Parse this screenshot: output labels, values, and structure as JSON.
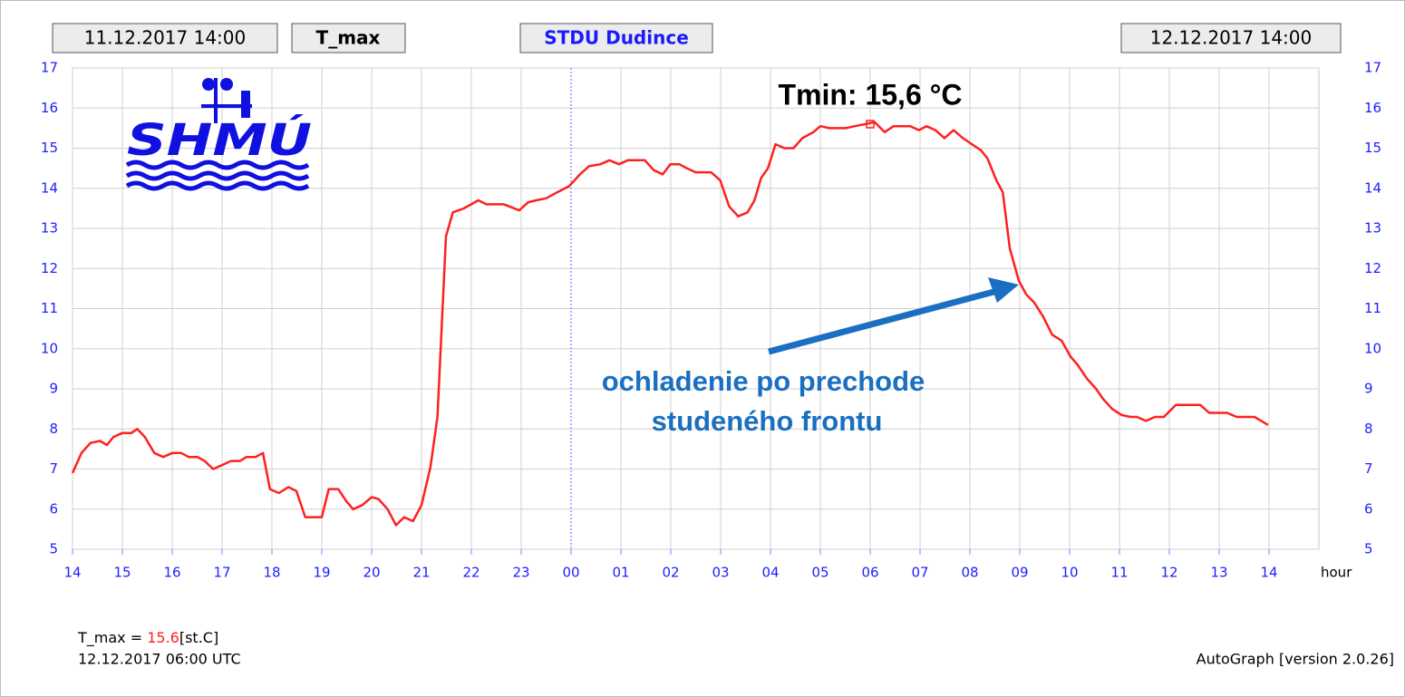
{
  "chart_data": {
    "type": "line",
    "header": {
      "start": "11.12.2017 14:00",
      "station": "STDU Dudince",
      "end": "12.12.2017 14:00"
    },
    "logo_text": "SHMÚ",
    "x_label": "hour",
    "xlim": [
      0,
      25
    ],
    "xticks": [
      {
        "value": 0,
        "label": "14"
      },
      {
        "value": 1,
        "label": "15"
      },
      {
        "value": 2,
        "label": "16"
      },
      {
        "value": 3,
        "label": "17"
      },
      {
        "value": 4,
        "label": "18"
      },
      {
        "value": 5,
        "label": "19"
      },
      {
        "value": 6,
        "label": "20"
      },
      {
        "value": 7,
        "label": "21"
      },
      {
        "value": 8,
        "label": "22"
      },
      {
        "value": 9,
        "label": "23"
      },
      {
        "value": 10,
        "label": "00"
      },
      {
        "value": 11,
        "label": "01"
      },
      {
        "value": 12,
        "label": "02"
      },
      {
        "value": 13,
        "label": "03"
      },
      {
        "value": 14,
        "label": "04"
      },
      {
        "value": 15,
        "label": "05"
      },
      {
        "value": 16,
        "label": "06"
      },
      {
        "value": 17,
        "label": "07"
      },
      {
        "value": 18,
        "label": "08"
      },
      {
        "value": 19,
        "label": "09"
      },
      {
        "value": 20,
        "label": "10"
      },
      {
        "value": 21,
        "label": "11"
      },
      {
        "value": 22,
        "label": "12"
      },
      {
        "value": 23,
        "label": "13"
      },
      {
        "value": 24,
        "label": "14"
      }
    ],
    "ylim": [
      5,
      17
    ],
    "yticks": [
      5,
      6,
      7,
      8,
      9,
      10,
      11,
      12,
      13,
      14,
      15,
      16,
      17
    ],
    "grid": true,
    "x": [
      0,
      0.18,
      0.36,
      0.55,
      0.69,
      0.82,
      1.0,
      1.18,
      1.3,
      1.45,
      1.64,
      1.82,
      2.0,
      2.18,
      2.33,
      2.51,
      2.65,
      2.82,
      3.0,
      3.18,
      3.36,
      3.49,
      3.67,
      3.82,
      3.96,
      4.14,
      4.33,
      4.49,
      4.67,
      5.0,
      5.14,
      5.33,
      5.49,
      5.63,
      5.81,
      6.0,
      6.14,
      6.32,
      6.49,
      6.65,
      6.83,
      7.0,
      7.18,
      7.32,
      7.49,
      7.63,
      7.85,
      8.14,
      8.3,
      8.65,
      8.96,
      9.14,
      9.3,
      9.5,
      9.72,
      9.96,
      10.18,
      10.36,
      10.59,
      10.77,
      10.96,
      11.14,
      11.48,
      11.66,
      11.84,
      11.99,
      12.17,
      12.32,
      12.5,
      12.81,
      12.99,
      13.17,
      13.35,
      13.54,
      13.68,
      13.81,
      13.95,
      14.1,
      14.28,
      14.46,
      14.64,
      14.86,
      15.0,
      15.18,
      15.51,
      15.69,
      15.91,
      16.09,
      16.29,
      16.47,
      16.8,
      16.98,
      17.13,
      17.31,
      17.49,
      17.67,
      17.86,
      18.04,
      18.22,
      18.35,
      18.53,
      18.66,
      18.8,
      18.98,
      19.13,
      19.29,
      19.47,
      19.65,
      19.84,
      20.02,
      20.16,
      20.35,
      20.53,
      20.67,
      20.85,
      21.04,
      21.22,
      21.35,
      21.53,
      21.71,
      21.89,
      22.13,
      22.62,
      22.8,
      23.16,
      23.35,
      23.71,
      23.98
    ],
    "series": [
      {
        "name": "T_max",
        "color": "#ff2020",
        "values": [
          6.9,
          7.4,
          7.65,
          7.7,
          7.6,
          7.8,
          7.9,
          7.9,
          8.0,
          7.8,
          7.4,
          7.3,
          7.4,
          7.4,
          7.3,
          7.3,
          7.2,
          7.0,
          7.1,
          7.2,
          7.2,
          7.3,
          7.3,
          7.4,
          6.5,
          6.4,
          6.55,
          6.45,
          5.8,
          5.8,
          6.5,
          6.5,
          6.2,
          6.0,
          6.1,
          6.3,
          6.25,
          6.0,
          5.6,
          5.8,
          5.7,
          6.1,
          7.05,
          8.3,
          12.8,
          13.4,
          13.5,
          13.7,
          13.6,
          13.6,
          13.45,
          13.65,
          13.7,
          13.75,
          13.9,
          14.05,
          14.35,
          14.55,
          14.6,
          14.7,
          14.6,
          14.7,
          14.7,
          14.45,
          14.35,
          14.6,
          14.6,
          14.5,
          14.4,
          14.4,
          14.2,
          13.55,
          13.3,
          13.4,
          13.7,
          14.25,
          14.5,
          15.1,
          15.0,
          15.0,
          15.25,
          15.4,
          15.55,
          15.5,
          15.5,
          15.55,
          15.6,
          15.65,
          15.4,
          15.55,
          15.55,
          15.45,
          15.55,
          15.45,
          15.25,
          15.45,
          15.25,
          15.1,
          14.95,
          14.75,
          14.2,
          13.9,
          12.5,
          11.7,
          11.35,
          11.15,
          10.8,
          10.35,
          10.2,
          9.8,
          9.6,
          9.25,
          9.0,
          8.75,
          8.5,
          8.35,
          8.3,
          8.3,
          8.2,
          8.3,
          8.3,
          8.6,
          8.6,
          8.4,
          8.4,
          8.3,
          8.3,
          8.1
        ]
      }
    ],
    "marker": {
      "x": 16,
      "y": 15.6,
      "label": "Tmin: 15,6 °C"
    },
    "annotation": [
      "ochladenie po prechode",
      "studeného frontu"
    ],
    "footer": {
      "label": "T_max =",
      "value": 15.6,
      "unit": "[st.C]",
      "time": "12.12.2017 06:00 UTC",
      "software": "AutoGraph [version 2.0.26]"
    }
  }
}
